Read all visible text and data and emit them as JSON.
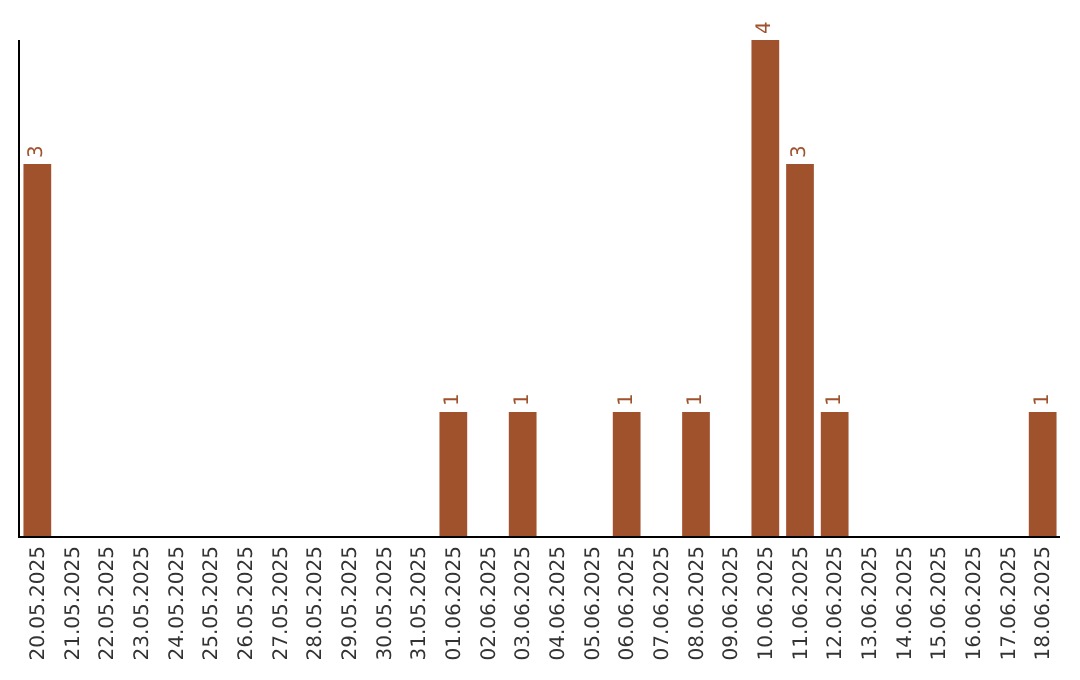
{
  "chart_data": {
    "type": "bar",
    "categories": [
      "20.05.2025",
      "21.05.2025",
      "22.05.2025",
      "23.05.2025",
      "24.05.2025",
      "25.05.2025",
      "26.05.2025",
      "27.05.2025",
      "28.05.2025",
      "29.05.2025",
      "30.05.2025",
      "31.05.2025",
      "01.06.2025",
      "02.06.2025",
      "03.06.2025",
      "04.06.2025",
      "05.06.2025",
      "06.06.2025",
      "07.06.2025",
      "08.06.2025",
      "09.06.2025",
      "10.06.2025",
      "11.06.2025",
      "12.06.2025",
      "13.06.2025",
      "14.06.2025",
      "15.06.2025",
      "16.06.2025",
      "17.06.2025",
      "18.06.2025"
    ],
    "values": [
      3,
      0,
      0,
      0,
      0,
      0,
      0,
      0,
      0,
      0,
      0,
      0,
      1,
      0,
      1,
      0,
      0,
      1,
      0,
      1,
      0,
      4,
      3,
      1,
      0,
      0,
      0,
      0,
      0,
      1
    ],
    "value_labels": [
      "3",
      null,
      null,
      null,
      null,
      null,
      null,
      null,
      null,
      null,
      null,
      null,
      "1",
      null,
      "1",
      null,
      null,
      "1",
      null,
      "1",
      null,
      "4",
      "3",
      "1",
      null,
      null,
      null,
      null,
      null,
      "1"
    ],
    "color": "#a0522d",
    "ylim": [
      0,
      4
    ],
    "tick_labels": "x",
    "legend": false
  }
}
